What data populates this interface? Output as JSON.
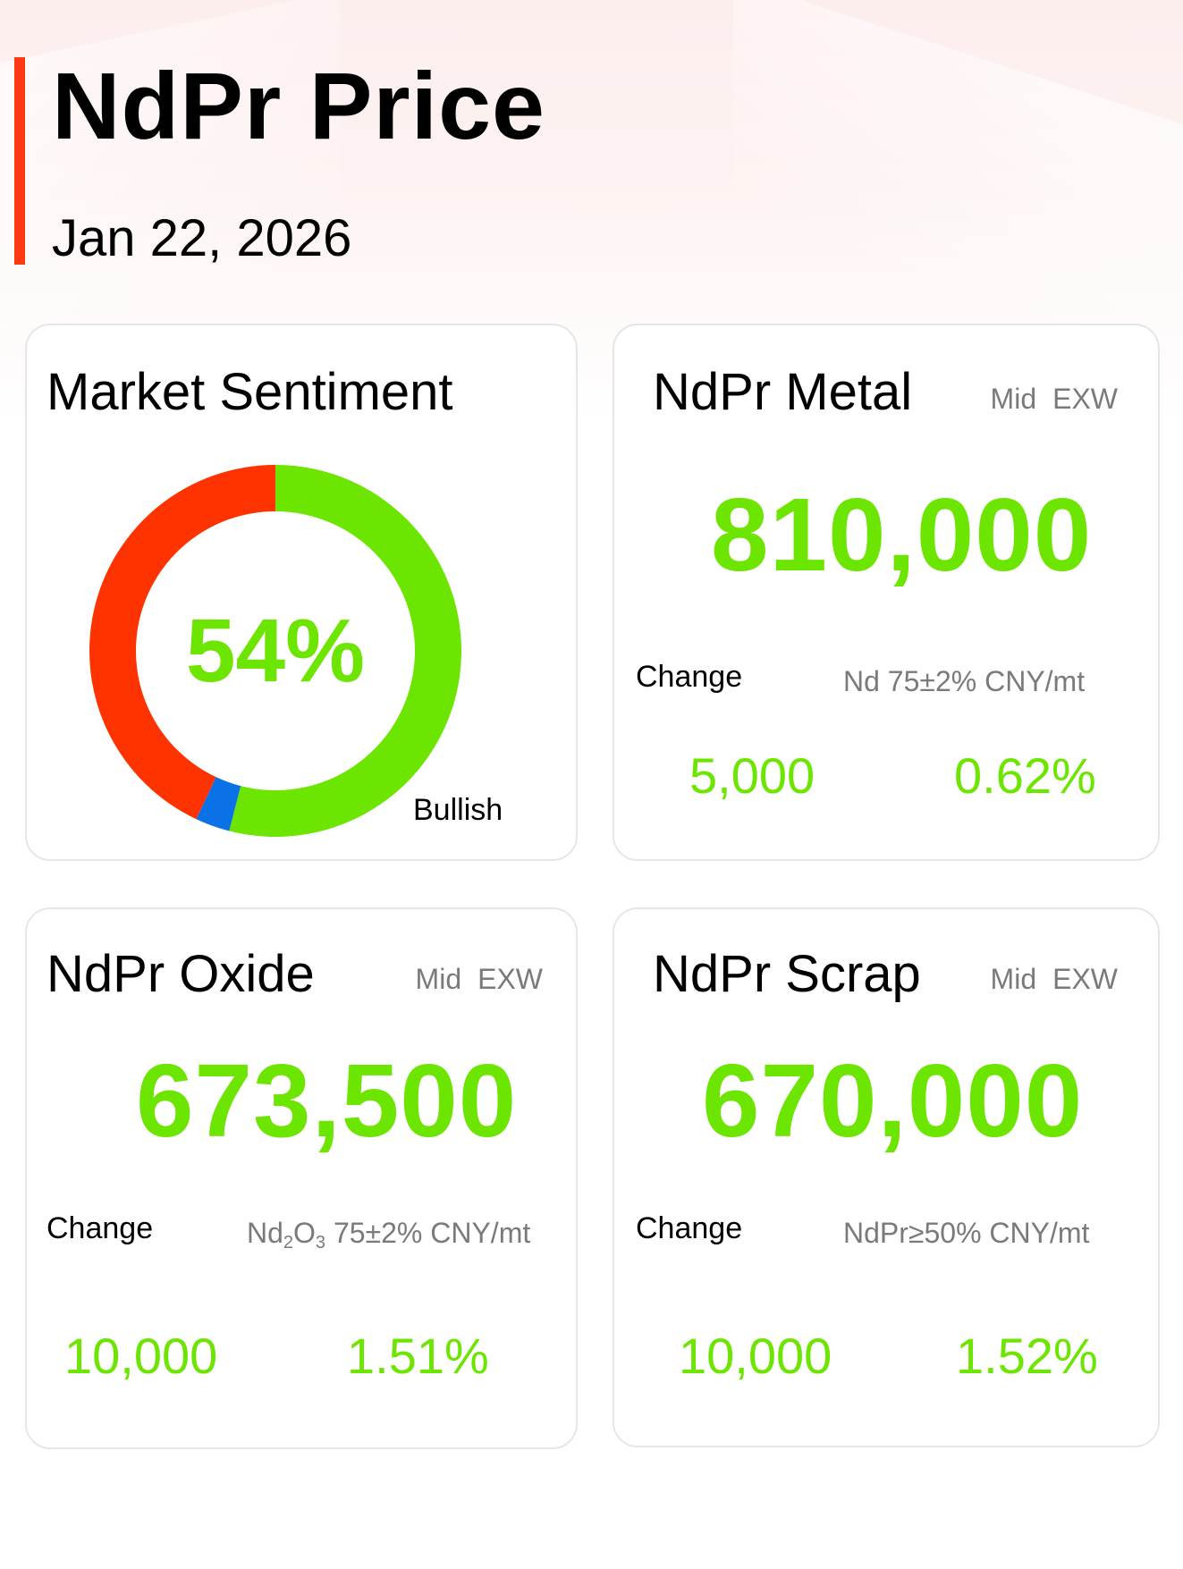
{
  "header": {
    "title": "NdPr Price",
    "date": "Jan 22, 2026"
  },
  "colors": {
    "accent": "#ff3a12",
    "up_green": "#6ce500",
    "bear_red": "#ff3300",
    "neutral_blue": "#0a72e6"
  },
  "sentiment": {
    "title": "Market Sentiment",
    "percent_label": "54%",
    "label": "Bullish",
    "bullish_share": 0.54,
    "neutral_share": 0.03,
    "bearish_share": 0.43
  },
  "metal": {
    "title": "NdPr Metal",
    "tag_mid": "Mid",
    "tag_exw": "EXW",
    "price": "810,000",
    "change_label": "Change",
    "spec": "Nd 75±2% CNY/mt",
    "change_abs": "5,000",
    "change_pct": "0.62%"
  },
  "oxide": {
    "title": "NdPr Oxide",
    "tag_mid": "Mid",
    "tag_exw": "EXW",
    "price": "673,500",
    "change_label": "Change",
    "spec_base": "Nd",
    "spec_sub1": "2",
    "spec_mid": "O",
    "spec_sub2": "3",
    "spec_rest": " 75±2% CNY/mt",
    "change_abs": "10,000",
    "change_pct": "1.51%"
  },
  "scrap": {
    "title": "NdPr Scrap",
    "tag_mid": "Mid",
    "tag_exw": "EXW",
    "price": "670,000",
    "change_label": "Change",
    "spec": "NdPr≥50% CNY/mt",
    "change_abs": "10,000",
    "change_pct": "1.52%"
  }
}
